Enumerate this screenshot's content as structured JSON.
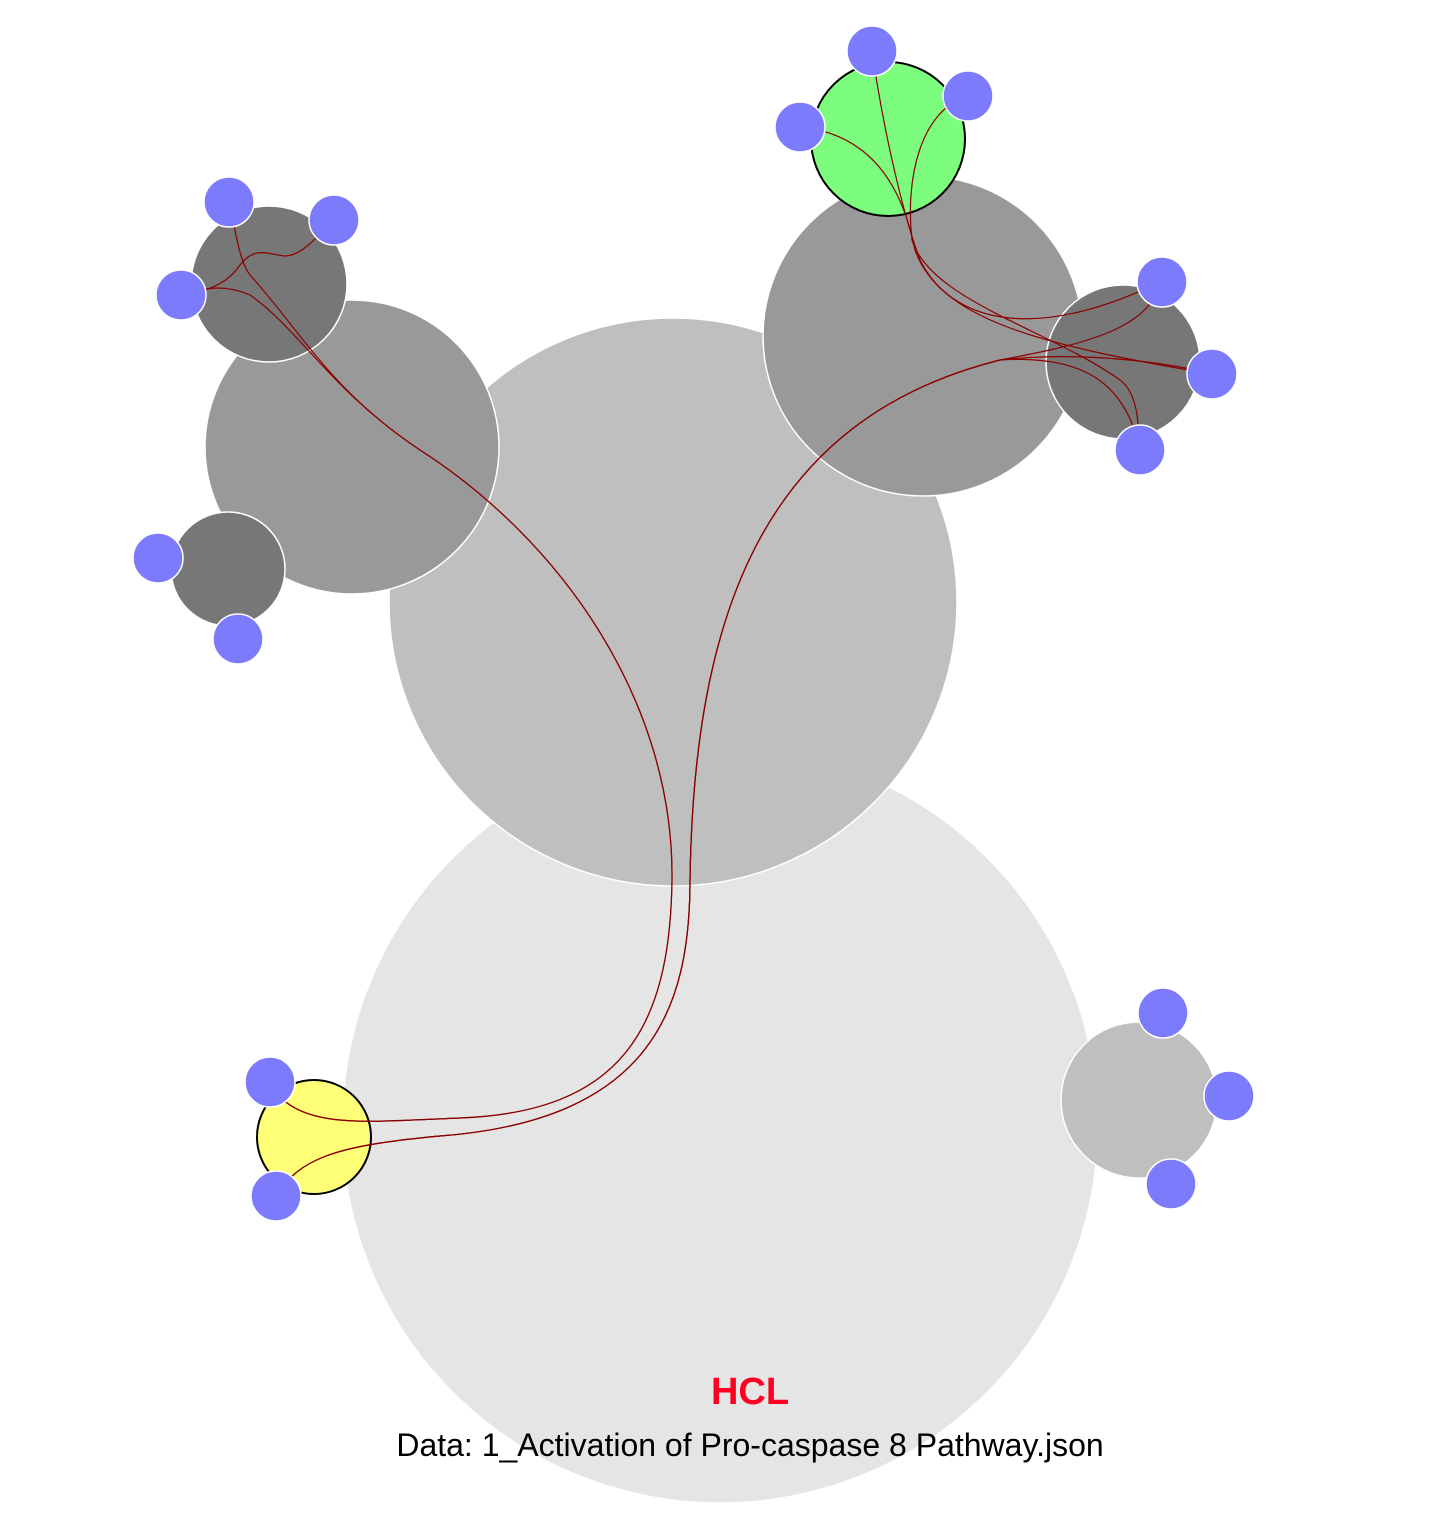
{
  "colors": {
    "background": "#ffffff",
    "title": "#ff0022",
    "level0": "#e5e5e5",
    "level1": "#bfbfbf",
    "level2": "#999999",
    "level3": "#777777",
    "leaf": "#7b7bfb",
    "highlight_source": "#ffff77",
    "highlight_target": "#7dfd7d",
    "edge": "#8b0000"
  },
  "caption": {
    "title": "HCL",
    "subtitle": "Data: 1_Activation of Pro-caspase 8 Pathway.json"
  }
}
